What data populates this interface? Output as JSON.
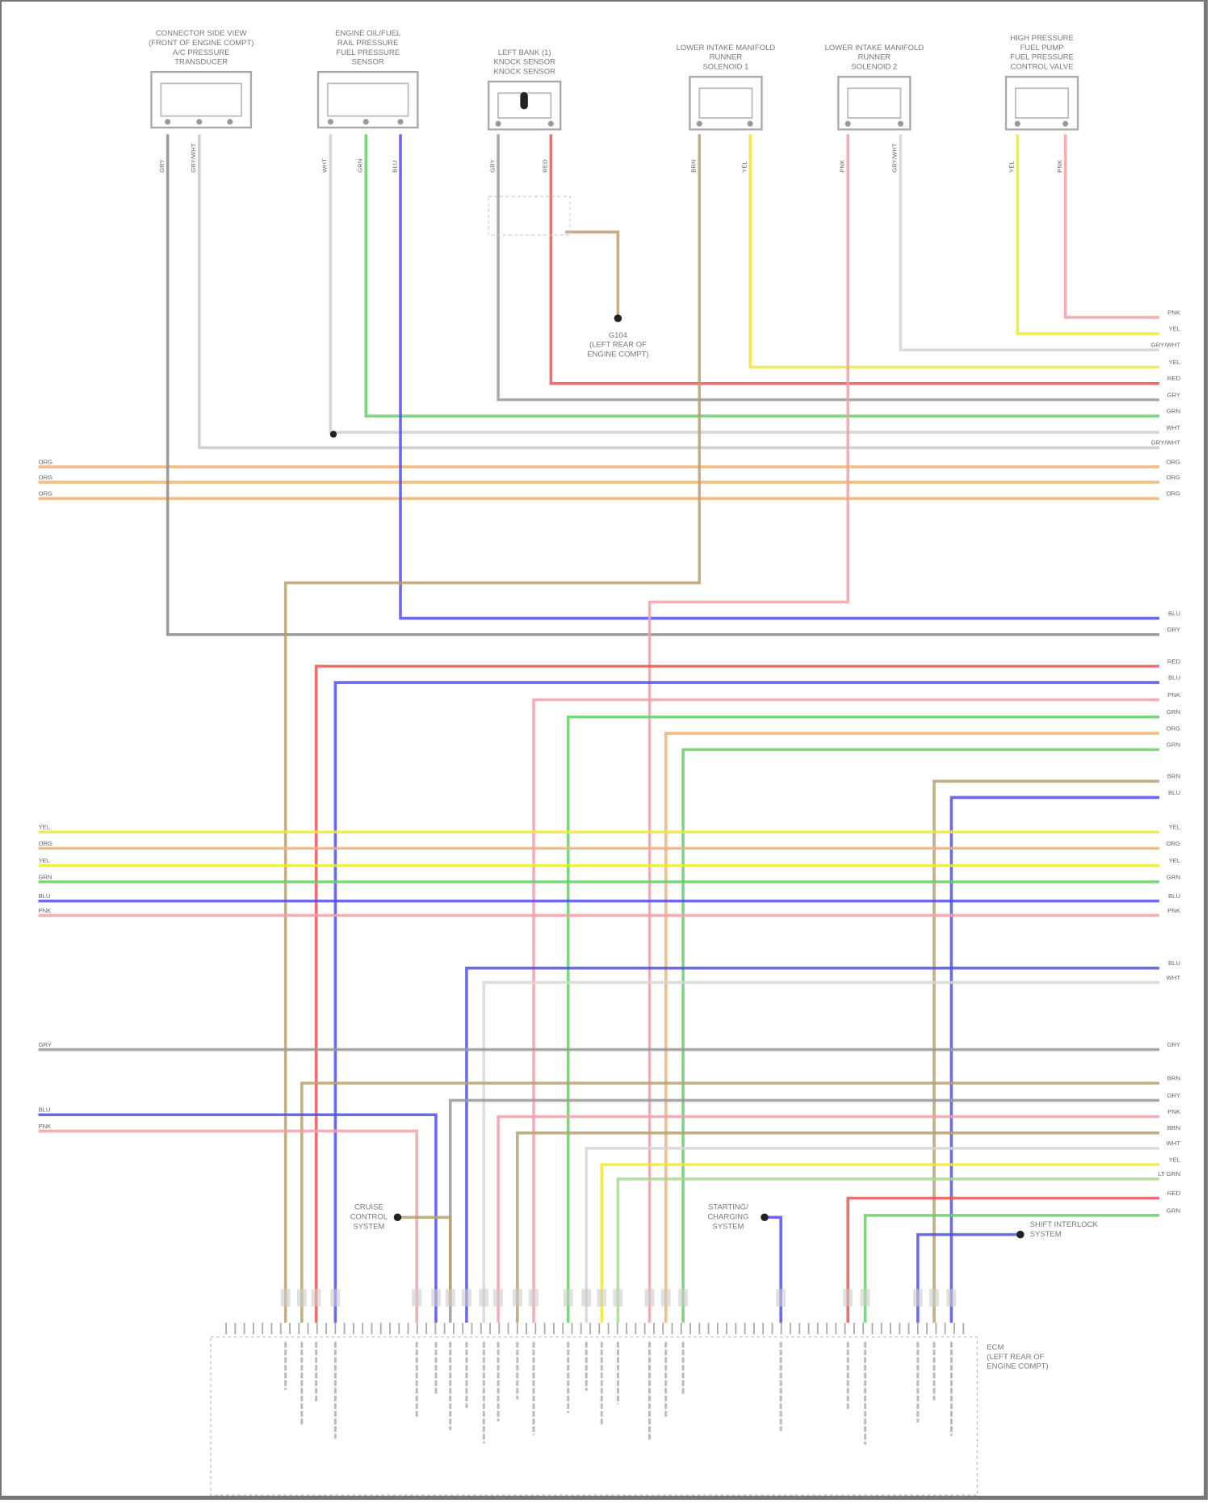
{
  "components": [
    {
      "name": "a-c-pressure-transducer",
      "lines": [
        "CONNECTOR SIDE VIEW",
        "(FRONT OF ENGINE COMPT)",
        "A/C PRESSURE",
        "TRANSDUCER"
      ]
    },
    {
      "name": "fuel-pressure-sensor",
      "lines": [
        "ENGINE OIL/FUEL",
        "RAIL PRESSURE",
        "FUEL PRESSURE",
        "SENSOR"
      ]
    },
    {
      "name": "knock-sensor",
      "lines": [
        "LEFT BANK (1)",
        "KNOCK SENSOR",
        "KNOCK SENSOR"
      ]
    },
    {
      "name": "intake-runner-solenoid-1",
      "lines": [
        "LOWER INTAKE MANIFOLD",
        "RUNNER",
        "SOLENOID 1"
      ]
    },
    {
      "name": "intake-runner-solenoid-2",
      "lines": [
        "LOWER INTAKE MANIFOLD",
        "RUNNER",
        "SOLENOID 2"
      ]
    },
    {
      "name": "fuel-pressure-control-valve",
      "lines": [
        "HIGH PRESSURE",
        "FUEL PUMP",
        "FUEL PRESSURE",
        "CONTROL VALVE"
      ]
    }
  ],
  "ground": {
    "lines": [
      "G104",
      "(LEFT REAR OF",
      "ENGINE COMPT)"
    ]
  },
  "systems": [
    {
      "name": "cruise-control",
      "lines": [
        "CRUISE",
        "CONTROL",
        "SYSTEM"
      ]
    },
    {
      "name": "starting-charging",
      "lines": [
        "STARTING/",
        "CHARGING",
        "SYSTEM"
      ]
    },
    {
      "name": "shift-interlock",
      "lines": [
        "SHIFT INTERLOCK",
        "SYSTEM"
      ]
    }
  ],
  "ecm": {
    "lines": [
      "ECM",
      "(LEFT REAR OF",
      "ENGINE COMPT)"
    ]
  },
  "wires": [
    {
      "code": "PNK",
      "color": "#f4a0a8"
    },
    {
      "code": "YEL",
      "color": "#eeea30"
    },
    {
      "code": "GRY/WHT",
      "color": "#d4d4d4"
    },
    {
      "code": "YEL",
      "color": "#eeea30"
    },
    {
      "code": "RED",
      "color": "#ef5252"
    },
    {
      "code": "GRY",
      "color": "#9a9a9a"
    },
    {
      "code": "GRN",
      "color": "#66cf66"
    },
    {
      "code": "WHT",
      "color": "#d0d0d0"
    },
    {
      "code": "GRY/WHT",
      "color": "#c8c8c8"
    },
    {
      "code": "ORG",
      "color": "#f5b070"
    },
    {
      "code": "ORG",
      "color": "#f5b070"
    },
    {
      "code": "ORG",
      "color": "#f5b070"
    },
    {
      "code": "BLU",
      "color": "#4f4fef"
    },
    {
      "code": "GRY",
      "color": "#8c8c8c"
    },
    {
      "code": "BRN",
      "color": "#b9a070"
    },
    {
      "code": "PNK",
      "color": "#f4a0a8"
    },
    {
      "code": "RED",
      "color": "#ef5252"
    },
    {
      "code": "BLU",
      "color": "#4f4fef"
    },
    {
      "code": "PNK",
      "color": "#f4a0a8"
    },
    {
      "code": "GRN",
      "color": "#66cf66"
    },
    {
      "code": "ORG",
      "color": "#f5b070"
    },
    {
      "code": "GRN",
      "color": "#66cf66"
    },
    {
      "code": "BRN",
      "color": "#b9a070"
    },
    {
      "code": "BLU",
      "color": "#4f4fef"
    },
    {
      "code": "YEL",
      "color": "#eeea30"
    },
    {
      "code": "ORG",
      "color": "#f5b070"
    },
    {
      "code": "YEL",
      "color": "#eeea30"
    },
    {
      "code": "GRN",
      "color": "#66cf66"
    },
    {
      "code": "BLU",
      "color": "#4f4fef"
    },
    {
      "code": "PNK",
      "color": "#f4a0a8"
    },
    {
      "code": "BLU",
      "color": "#4f4fef"
    },
    {
      "code": "WHT",
      "color": "#d6d6d6"
    },
    {
      "code": "GRY",
      "color": "#9a9a9a"
    },
    {
      "code": "BRN",
      "color": "#b9a070"
    },
    {
      "code": "GRY",
      "color": "#9a9a9a"
    },
    {
      "code": "PNK",
      "color": "#f4a0a8"
    },
    {
      "code": "BRN",
      "color": "#b9a070"
    },
    {
      "code": "WHT",
      "color": "#d6d6d6"
    },
    {
      "code": "YEL",
      "color": "#eeea30"
    },
    {
      "code": "LT GRN",
      "color": "#a8d890"
    },
    {
      "code": "RED",
      "color": "#ef5252"
    },
    {
      "code": "GRN",
      "color": "#66cf66"
    },
    {
      "code": "BLU",
      "color": "#4f4fef"
    },
    {
      "code": "PNK",
      "color": "#f4a0a8"
    },
    {
      "code": "BLU",
      "color": "#4f4fef"
    },
    {
      "code": "BLU",
      "color": "#4f4fef"
    },
    {
      "code": "BRN",
      "color": "#b9a070"
    },
    {
      "code": "BRN",
      "color": "#b9a070"
    }
  ]
}
